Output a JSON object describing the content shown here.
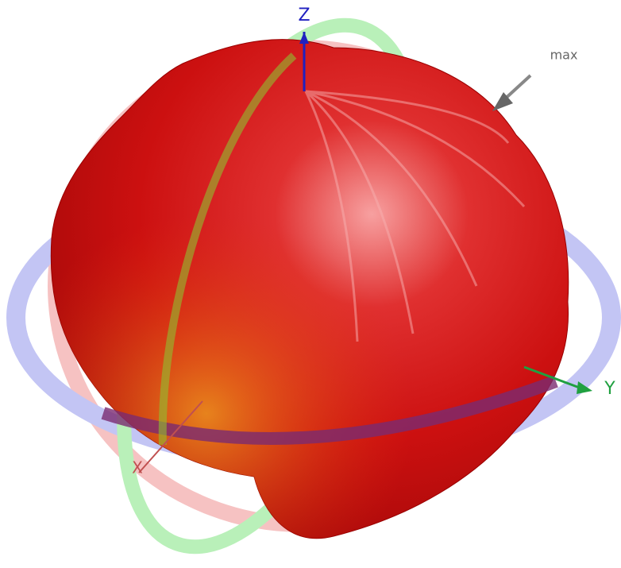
{
  "axes": {
    "z": "Z",
    "y": "Y",
    "x": "X"
  },
  "annotation": "max"
}
